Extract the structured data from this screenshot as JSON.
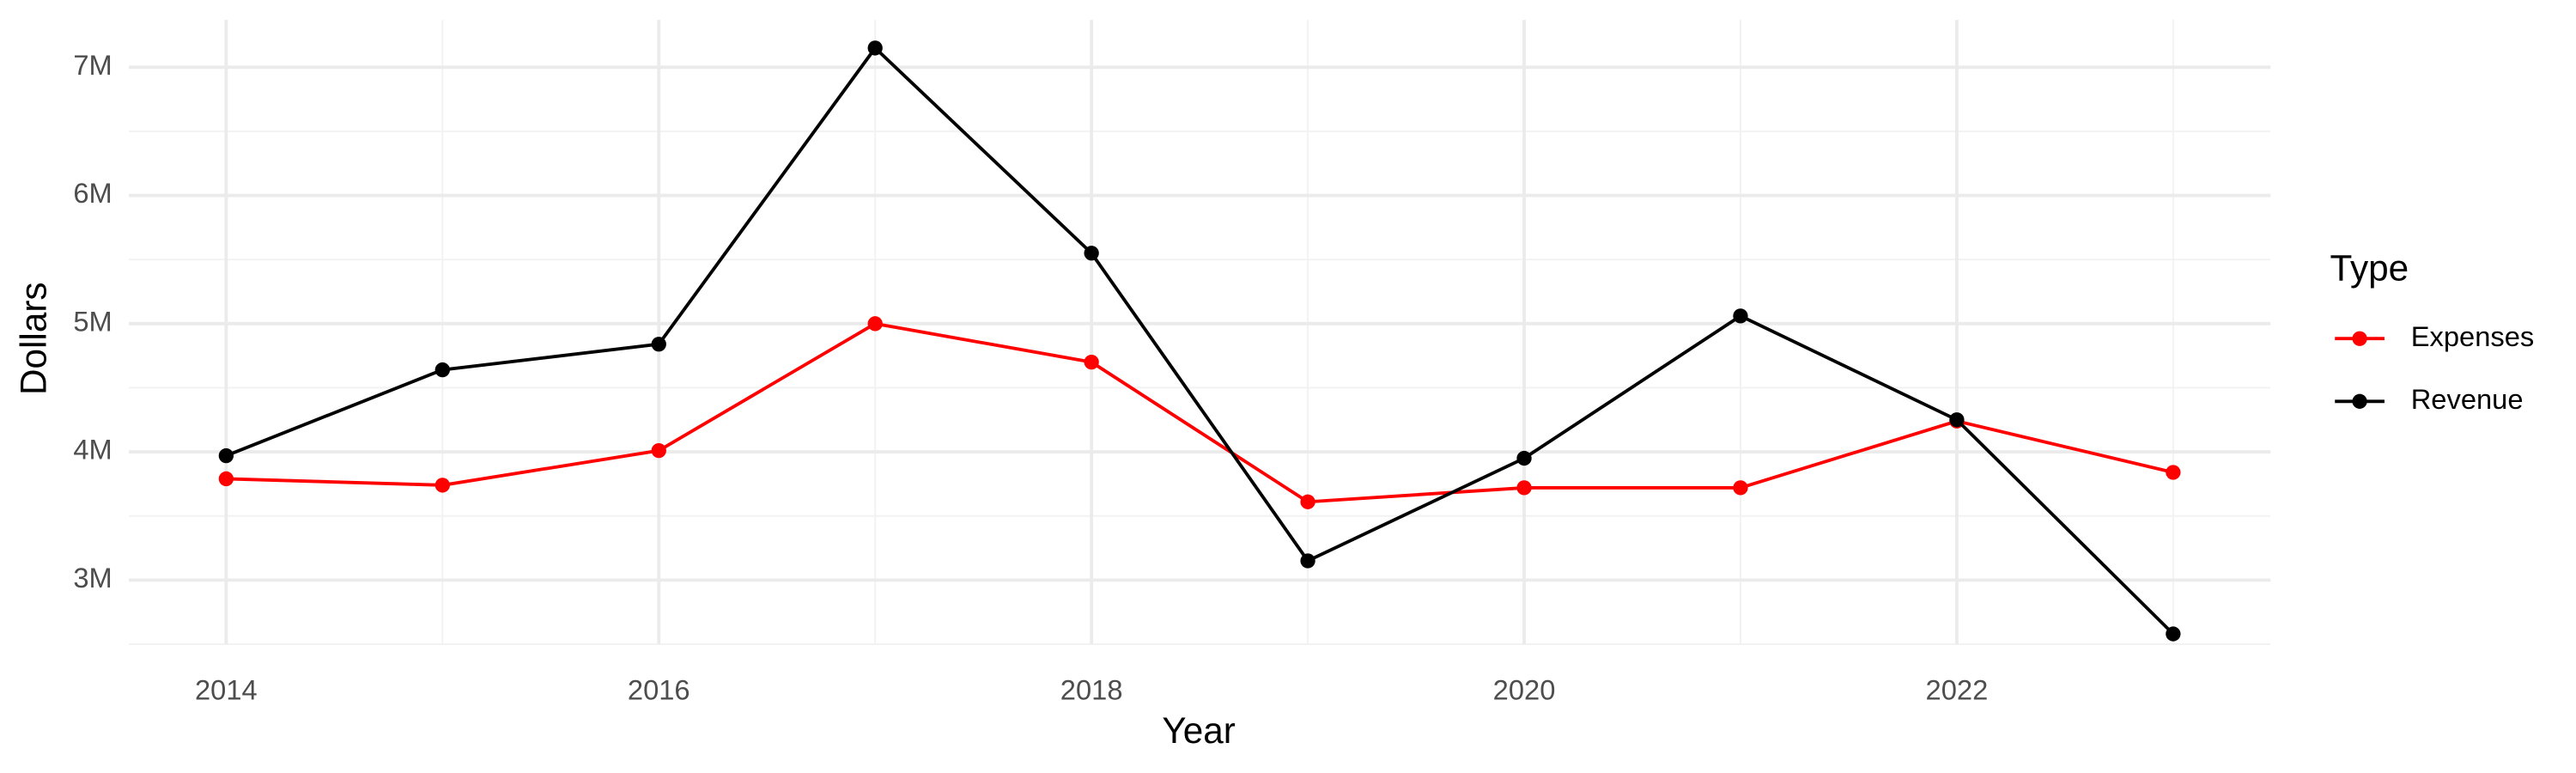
{
  "chart_data": {
    "type": "line",
    "x_label": "Year",
    "y_label": "Dollars",
    "x": [
      2014,
      2015,
      2016,
      2017,
      2018,
      2019,
      2020,
      2021,
      2022,
      2023
    ],
    "series": [
      {
        "name": "Expenses",
        "color": "#ff0000",
        "values": [
          3790000,
          3740000,
          4010000,
          5000000,
          4700000,
          3610000,
          3720000,
          3720000,
          4240000,
          3840000
        ]
      },
      {
        "name": "Revenue",
        "color": "#000000",
        "values": [
          3970000,
          4640000,
          4840000,
          7150000,
          5550000,
          3150000,
          3950000,
          5060000,
          4250000,
          2580000
        ]
      }
    ],
    "xlim": [
      2013.55,
      2023.45
    ],
    "xticks": [
      2014,
      2016,
      2018,
      2020,
      2022
    ],
    "ylim": [
      2500000,
      7370000
    ],
    "yticks": [
      {
        "value": 3000000,
        "label": "3M"
      },
      {
        "value": 4000000,
        "label": "4M"
      },
      {
        "value": 5000000,
        "label": "5M"
      },
      {
        "value": 6000000,
        "label": "6M"
      },
      {
        "value": 7000000,
        "label": "7M"
      }
    ],
    "grid": true,
    "legend_title": "Type",
    "legend_position": "right"
  }
}
